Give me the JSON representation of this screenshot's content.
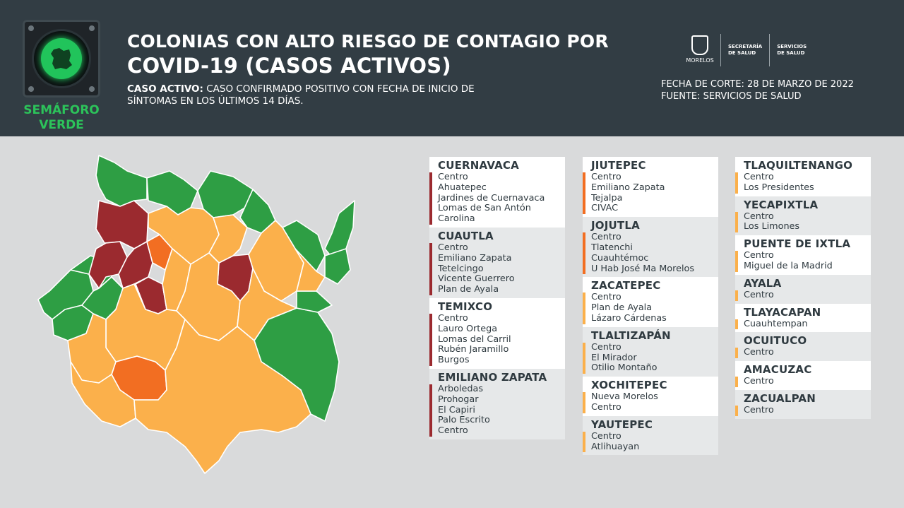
{
  "header": {
    "semaforo_label": "SEMÁFORO\nVERDE",
    "title_line1": "COLONIAS CON ALTO RIESGO DE CONTAGIO POR",
    "title_line2": "COVID-19 (CASOS ACTIVOS)",
    "definition_label": "CASO ACTIVO:",
    "definition_text": " CASO CONFIRMADO POSITIVO CON FECHA DE INICIO DE SÍNTOMAS EN LOS ÚLTIMOS 14 DÍAS.",
    "fecha_corte": "FECHA DE CORTE: 28 DE MARZO DE 2022",
    "fuente": "FUENTE: SERVICIOS DE SALUD",
    "brand_morelos": "MORELOS",
    "brand_secretaria": "SECRETARÍA\nDE SALUD",
    "brand_servicios": "SERVICIOS\nDE SALUD"
  },
  "colors": {
    "high_red": "#9b2a2f",
    "orange": "#f26e22",
    "yellow": "#fbb04b",
    "green": "#2e9e44",
    "header_bg": "#323d44",
    "semaforo_green": "#2cc35a"
  },
  "columns": [
    [
      {
        "name": "CUERNAVACA",
        "level": "red",
        "bg": "w",
        "items": [
          "Centro",
          "Ahuatepec",
          "Jardines de Cuernavaca",
          "Lomas de San Antón",
          "Carolina"
        ]
      },
      {
        "name": "CUAUTLA",
        "level": "red",
        "bg": "g",
        "items": [
          "Centro",
          "Emiliano Zapata",
          "Tetelcingo",
          "Vicente Guerrero",
          "Plan de Ayala"
        ]
      },
      {
        "name": "TEMIXCO",
        "level": "red",
        "bg": "w",
        "items": [
          "Centro",
          "Lauro Ortega",
          "Lomas del Carril",
          "Rubén Jaramillo",
          "Burgos"
        ]
      },
      {
        "name": "EMILIANO ZAPATA",
        "level": "red",
        "bg": "g",
        "items": [
          "Arboledas",
          "Prohogar",
          "El Capiri",
          "Palo Escrito",
          "Centro"
        ]
      }
    ],
    [
      {
        "name": "JIUTEPEC",
        "level": "orange",
        "bg": "w",
        "items": [
          "Centro",
          "Emiliano Zapata",
          "Tejalpa",
          "CIVAC"
        ]
      },
      {
        "name": "JOJUTLA",
        "level": "orange",
        "bg": "g",
        "items": [
          "Centro",
          "Tlatenchi",
          "Cuauhtémoc",
          "U Hab José Ma Morelos"
        ]
      },
      {
        "name": "ZACATEPEC",
        "level": "yellow",
        "bg": "w",
        "items": [
          "Centro",
          "Plan de Ayala",
          "Lázaro Cárdenas"
        ]
      },
      {
        "name": "TLALTIZAPÁN",
        "level": "yellow",
        "bg": "g",
        "items": [
          "Centro",
          "El Mirador",
          "Otilio Montaño"
        ]
      },
      {
        "name": "XOCHITEPEC",
        "level": "yellow",
        "bg": "w",
        "items": [
          "Nueva Morelos",
          "Centro"
        ]
      },
      {
        "name": "YAUTEPEC",
        "level": "yellow",
        "bg": "g",
        "items": [
          "Centro",
          "Atlihuayan"
        ]
      }
    ],
    [
      {
        "name": "TLAQUILTENANGO",
        "level": "yellow",
        "bg": "w",
        "items": [
          "Centro",
          "Los Presidentes"
        ]
      },
      {
        "name": "YECAPIXTLA",
        "level": "yellow",
        "bg": "g",
        "items": [
          "Centro",
          "Los Limones"
        ]
      },
      {
        "name": "PUENTE DE IXTLA",
        "level": "yellow",
        "bg": "w",
        "items": [
          "Centro",
          "Miguel de la Madrid"
        ]
      },
      {
        "name": "AYALA",
        "level": "yellow",
        "bg": "g",
        "items": [
          "Centro"
        ]
      },
      {
        "name": "TLAYACAPAN",
        "level": "yellow",
        "bg": "w",
        "items": [
          "Cuauhtempan"
        ]
      },
      {
        "name": "OCUITUCO",
        "level": "yellow",
        "bg": "g",
        "items": [
          "Centro"
        ]
      },
      {
        "name": "AMACUZAC",
        "level": "yellow",
        "bg": "w",
        "items": [
          "Centro"
        ]
      },
      {
        "name": "ZACUALPAN",
        "level": "yellow",
        "bg": "g",
        "items": [
          "Centro"
        ]
      }
    ]
  ]
}
